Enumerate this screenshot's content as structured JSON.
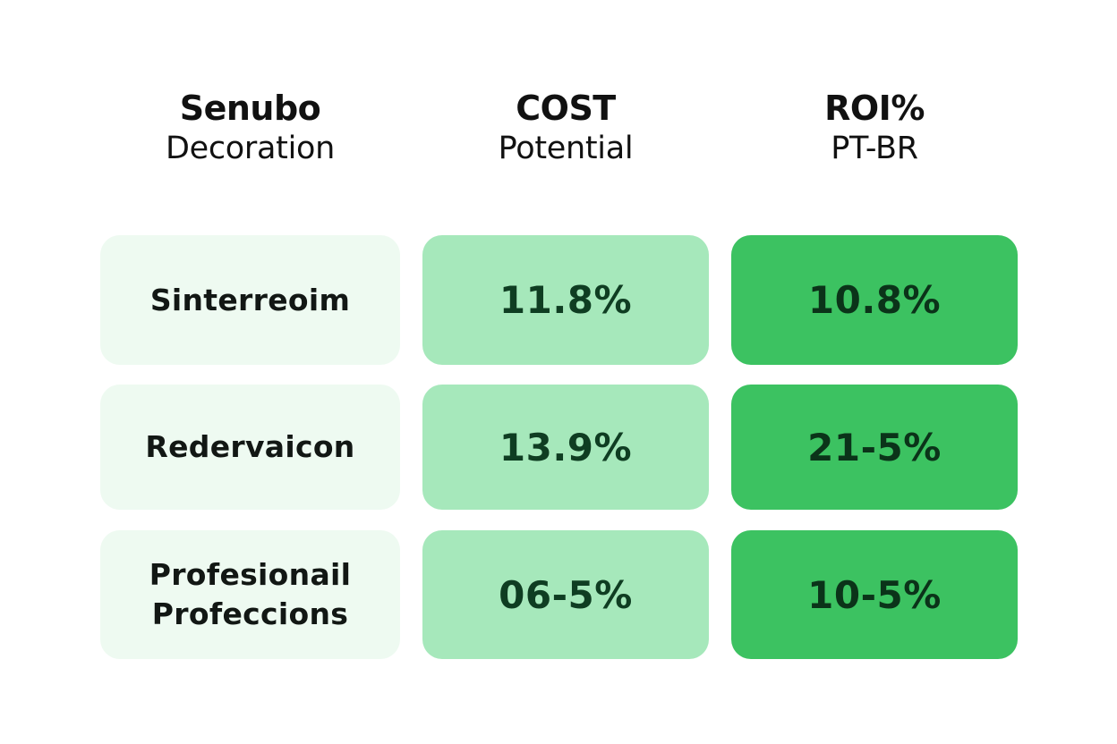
{
  "headers": [
    {
      "title": "Senubo",
      "subtitle": "Decoration"
    },
    {
      "title": "COST",
      "subtitle": "Potential"
    },
    {
      "title": "ROI%",
      "subtitle": "PT-BR"
    }
  ],
  "rows": [
    {
      "label": [
        "Sinterreoim"
      ],
      "cost": "11.8%",
      "roi": "10.8%"
    },
    {
      "label": [
        "Redervaicon"
      ],
      "cost": "13.9%",
      "roi": "21-5%"
    },
    {
      "label": [
        "Profesionail",
        "Profeccions"
      ],
      "cost": "06-5%",
      "roi": "10-5%"
    }
  ],
  "colors": {
    "label_bg": "#eefaf1",
    "cost_bg": "#a6e8bb",
    "roi_bg": "#3cc261",
    "value_text": "#0f3d22"
  },
  "chart_data": {
    "type": "table",
    "title": "",
    "columns": [
      "Senubo Decoration",
      "COST Potential",
      "ROI% PT-BR"
    ],
    "rows": [
      [
        "Sinterreoim",
        "11.8%",
        "10.8%"
      ],
      [
        "Redervaicon",
        "13.9%",
        "21-5%"
      ],
      [
        "Profesionail Profeccions",
        "06-5%",
        "10-5%"
      ]
    ],
    "layout": {
      "grid": false,
      "legend": "none",
      "style": "heatmap-like colored cells"
    }
  }
}
